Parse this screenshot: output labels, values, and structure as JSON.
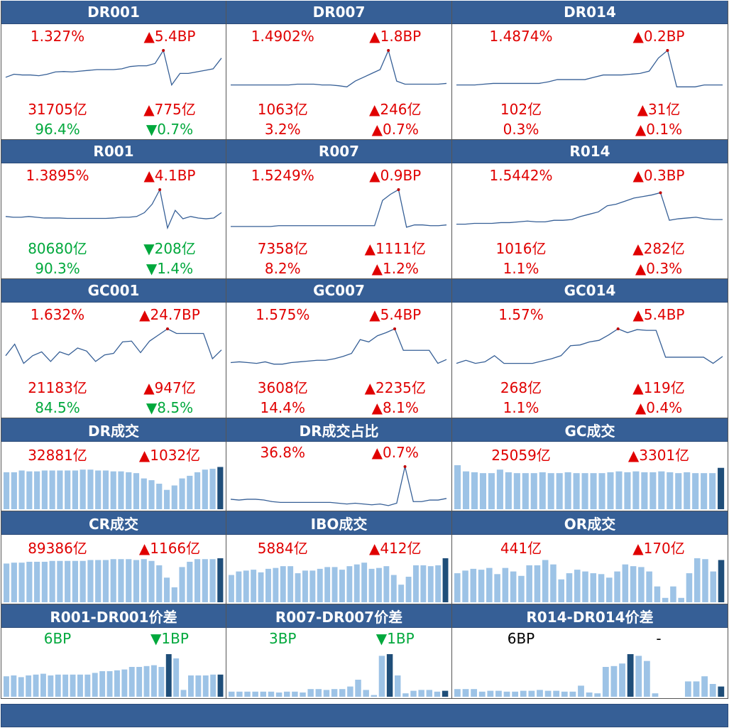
{
  "colors": {
    "header": "#365f96",
    "up": "#e00000",
    "down": "#00a83c",
    "line": "#365f96",
    "bar": "#9dc3e6",
    "bar_last": "#1f4e79"
  },
  "rows": [
    {
      "type": "rate",
      "cells": [
        {
          "title": "DR001",
          "rate": "1.327%",
          "rate_chg": "▲5.4BP",
          "rate_chg_color": "red",
          "vol": "31705亿",
          "vol_chg": "▲775亿",
          "vol_color": "red",
          "vol_chg_color": "red",
          "share": "96.4%",
          "share_chg": "▼0.7%",
          "share_color": "grn",
          "share_chg_color": "grn",
          "series": [
            0.3,
            0.38,
            0.36,
            0.36,
            0.34,
            0.38,
            0.44,
            0.45,
            0.44,
            0.46,
            0.48,
            0.5,
            0.5,
            0.5,
            0.52,
            0.58,
            0.6,
            0.6,
            0.66,
            1.0,
            0.1,
            0.4,
            0.4,
            0.44,
            0.48,
            0.52,
            0.8
          ]
        },
        {
          "title": "DR007",
          "rate": "1.4902%",
          "rate_chg": "▲1.8BP",
          "rate_chg_color": "red",
          "vol": "1063亿",
          "vol_chg": "▲246亿",
          "vol_color": "red",
          "vol_chg_color": "red",
          "share": "3.2%",
          "share_chg": "▲0.7%",
          "share_color": "red",
          "share_chg_color": "red",
          "series": [
            0.1,
            0.1,
            0.1,
            0.1,
            0.1,
            0.1,
            0.1,
            0.1,
            0.12,
            0.12,
            0.12,
            0.1,
            0.1,
            0.08,
            0.05,
            0.2,
            0.3,
            0.4,
            0.5,
            1.0,
            0.2,
            0.12,
            0.12,
            0.12,
            0.12,
            0.12,
            0.14
          ]
        },
        {
          "title": "DR014",
          "rate": "1.4874%",
          "rate_chg": "▲0.2BP",
          "rate_chg_color": "red",
          "vol": "102亿",
          "vol_chg": "▲31亿",
          "vol_color": "red",
          "vol_chg_color": "red",
          "share": "0.3%",
          "share_chg": "▲0.1%",
          "share_color": "red",
          "share_chg_color": "red",
          "series": [
            0.1,
            0.1,
            0.1,
            0.12,
            0.14,
            0.14,
            0.14,
            0.14,
            0.14,
            0.14,
            0.18,
            0.24,
            0.24,
            0.24,
            0.24,
            0.3,
            0.36,
            0.36,
            0.36,
            0.38,
            0.4,
            0.46,
            0.8,
            1.0,
            0.05,
            0.05,
            0.05,
            0.1,
            0.1,
            0.1
          ]
        }
      ]
    },
    {
      "type": "rate",
      "cells": [
        {
          "title": "R001",
          "rate": "1.3895%",
          "rate_chg": "▲4.1BP",
          "rate_chg_color": "red",
          "vol": "80680亿",
          "vol_chg": "▼208亿",
          "vol_color": "grn",
          "vol_chg_color": "grn",
          "share": "90.3%",
          "share_chg": "▼1.4%",
          "share_color": "grn",
          "share_chg_color": "grn",
          "series": [
            0.3,
            0.28,
            0.28,
            0.3,
            0.28,
            0.26,
            0.26,
            0.26,
            0.25,
            0.25,
            0.25,
            0.25,
            0.25,
            0.25,
            0.26,
            0.28,
            0.28,
            0.3,
            0.4,
            0.62,
            1.0,
            0.0,
            0.46,
            0.24,
            0.3,
            0.26,
            0.24,
            0.26,
            0.4
          ]
        },
        {
          "title": "R007",
          "rate": "1.5249%",
          "rate_chg": "▲0.9BP",
          "rate_chg_color": "red",
          "vol": "7358亿",
          "vol_chg": "▲1111亿",
          "vol_color": "red",
          "vol_chg_color": "red",
          "share": "8.2%",
          "share_chg": "▲1.2%",
          "share_color": "red",
          "share_chg_color": "red",
          "series": [
            0.04,
            0.04,
            0.04,
            0.04,
            0.04,
            0.04,
            0.06,
            0.06,
            0.06,
            0.06,
            0.06,
            0.06,
            0.06,
            0.06,
            0.06,
            0.06,
            0.06,
            0.06,
            0.06,
            0.72,
            0.88,
            1.0,
            0.02,
            0.08,
            0.08,
            0.06,
            0.06,
            0.08
          ]
        },
        {
          "title": "R014",
          "rate": "1.5442%",
          "rate_chg": "▲0.3BP",
          "rate_chg_color": "red",
          "vol": "1016亿",
          "vol_chg": "▲282亿",
          "vol_color": "red",
          "vol_chg_color": "red",
          "share": "1.1%",
          "share_chg": "▲0.3%",
          "share_color": "red",
          "share_chg_color": "red",
          "series": [
            0.1,
            0.1,
            0.12,
            0.12,
            0.12,
            0.14,
            0.14,
            0.16,
            0.18,
            0.16,
            0.16,
            0.2,
            0.2,
            0.22,
            0.3,
            0.36,
            0.42,
            0.58,
            0.62,
            0.7,
            0.78,
            0.82,
            0.86,
            0.92,
            0.2,
            0.24,
            0.26,
            0.28,
            0.24,
            0.22,
            0.22
          ]
        }
      ]
    },
    {
      "type": "rate",
      "cells": [
        {
          "title": "GC001",
          "rate": "1.632%",
          "rate_chg": "▲24.7BP",
          "rate_chg_color": "red",
          "vol": "21183亿",
          "vol_chg": "▲947亿",
          "vol_color": "red",
          "vol_chg_color": "red",
          "share": "84.5%",
          "share_chg": "▼8.5%",
          "share_color": "grn",
          "share_chg_color": "grn",
          "series": [
            0.3,
            0.6,
            0.1,
            0.3,
            0.4,
            0.15,
            0.4,
            0.32,
            0.5,
            0.42,
            0.15,
            0.32,
            0.36,
            0.66,
            0.68,
            0.38,
            0.68,
            0.84,
            1.0,
            0.88,
            0.88,
            0.88,
            0.88,
            0.22,
            0.45
          ]
        },
        {
          "title": "GC007",
          "rate": "1.575%",
          "rate_chg": "▲5.4BP",
          "rate_chg_color": "red",
          "vol": "3608亿",
          "vol_chg": "▲2235亿",
          "vol_color": "red",
          "vol_chg_color": "red",
          "share": "14.4%",
          "share_chg": "▲8.1%",
          "share_color": "red",
          "share_chg_color": "red",
          "series": [
            0.12,
            0.14,
            0.12,
            0.1,
            0.14,
            0.08,
            0.08,
            0.12,
            0.14,
            0.16,
            0.18,
            0.18,
            0.22,
            0.28,
            0.36,
            0.72,
            0.66,
            0.82,
            0.9,
            1.0,
            0.44,
            0.44,
            0.44,
            0.44,
            0.1,
            0.2
          ]
        },
        {
          "title": "GC014",
          "rate": "1.57%",
          "rate_chg": "▲5.4BP",
          "rate_chg_color": "red",
          "vol": "268亿",
          "vol_chg": "▲119亿",
          "vol_color": "red",
          "vol_chg_color": "red",
          "share": "1.1%",
          "share_chg": "▲0.4%",
          "share_color": "red",
          "share_chg_color": "red",
          "series": [
            0.1,
            0.18,
            0.1,
            0.14,
            0.3,
            0.1,
            0.1,
            0.1,
            0.1,
            0.16,
            0.22,
            0.3,
            0.56,
            0.58,
            0.66,
            0.7,
            0.84,
            1.0,
            0.9,
            0.98,
            0.96,
            0.96,
            0.26,
            0.26,
            0.26,
            0.26,
            0.26,
            0.1,
            0.28
          ]
        }
      ]
    },
    {
      "type": "bar",
      "cells": [
        {
          "title": "DR成交",
          "v1": "32881亿",
          "v1_color": "red",
          "v2": "▲1032亿",
          "v2_color": "red",
          "chart": "bar",
          "series": [
            0.84,
            0.84,
            0.88,
            0.86,
            0.86,
            0.88,
            0.88,
            0.88,
            0.88,
            0.88,
            0.9,
            0.9,
            0.88,
            0.88,
            0.86,
            0.86,
            0.84,
            0.82,
            0.7,
            0.66,
            0.58,
            0.44,
            0.54,
            0.7,
            0.76,
            0.84,
            0.9,
            0.92,
            0.96
          ]
        },
        {
          "title": "DR成交占比",
          "v1": "36.8%",
          "v1_color": "red",
          "v2": "▲0.7%",
          "v2_color": "red",
          "chart": "line",
          "series": [
            0.18,
            0.16,
            0.18,
            0.18,
            0.16,
            0.12,
            0.1,
            0.1,
            0.1,
            0.1,
            0.1,
            0.1,
            0.1,
            0.08,
            0.06,
            0.08,
            0.06,
            0.04,
            0.06,
            0.02,
            0.08,
            1.0,
            0.12,
            0.12,
            0.16,
            0.16,
            0.2
          ]
        },
        {
          "title": "GC成交",
          "v1": "25059亿",
          "v1_color": "red",
          "v2": "▲3301亿",
          "v2_color": "red",
          "chart": "bar",
          "series": [
            1.0,
            0.86,
            0.84,
            0.82,
            0.82,
            0.9,
            0.84,
            0.82,
            0.82,
            0.82,
            0.84,
            0.82,
            0.82,
            0.84,
            0.82,
            0.82,
            0.82,
            0.82,
            0.84,
            0.86,
            0.84,
            0.86,
            0.84,
            0.84,
            0.86,
            0.84,
            0.82,
            0.84,
            0.82,
            0.82,
            0.82,
            0.94
          ]
        }
      ]
    },
    {
      "type": "bar",
      "cells": [
        {
          "title": "CR成交",
          "v1": "89386亿",
          "v1_color": "red",
          "v2": "▲1166亿",
          "v2_color": "red",
          "chart": "bar",
          "series": [
            0.88,
            0.9,
            0.9,
            0.92,
            0.92,
            0.92,
            0.94,
            0.94,
            0.94,
            0.94,
            0.94,
            0.96,
            0.96,
            0.96,
            0.98,
            0.98,
            0.98,
            0.96,
            0.98,
            0.94,
            0.84,
            0.56,
            0.34,
            0.8,
            0.92,
            0.98,
            0.98,
            0.98,
            1.0
          ]
        },
        {
          "title": "IBO成交",
          "v1": "5884亿",
          "v1_color": "red",
          "v2": "▲412亿",
          "v2_color": "red",
          "chart": "bar",
          "series": [
            0.62,
            0.7,
            0.72,
            0.74,
            0.68,
            0.76,
            0.78,
            0.82,
            0.82,
            0.66,
            0.72,
            0.72,
            0.76,
            0.8,
            0.8,
            0.74,
            0.82,
            0.86,
            0.9,
            0.76,
            0.78,
            0.82,
            0.62,
            0.4,
            0.58,
            0.84,
            0.84,
            0.82,
            0.84,
            1.0
          ]
        },
        {
          "title": "OR成交",
          "v1": "441亿",
          "v1_color": "red",
          "v2": "▲170亿",
          "v2_color": "red",
          "chart": "bar",
          "series": [
            0.66,
            0.72,
            0.76,
            0.74,
            0.78,
            0.64,
            0.78,
            0.7,
            0.6,
            0.84,
            0.84,
            0.96,
            0.86,
            0.52,
            0.66,
            0.74,
            0.7,
            0.66,
            0.64,
            0.56,
            0.7,
            0.86,
            0.82,
            0.8,
            0.7,
            0.36,
            0.1,
            0.36,
            0.1,
            0.66,
            1.0,
            0.98,
            0.7,
            0.96
          ]
        }
      ]
    },
    {
      "type": "spread",
      "cells": [
        {
          "title": "R001-DR001价差",
          "v1": "6BP",
          "v1_color": "grn",
          "v2": "▼1BP",
          "v2_color": "grn",
          "chart": "bar",
          "series": [
            0.48,
            0.5,
            0.46,
            0.5,
            0.52,
            0.54,
            0.5,
            0.52,
            0.52,
            0.52,
            0.52,
            0.52,
            0.56,
            0.6,
            0.6,
            0.62,
            0.64,
            0.7,
            0.7,
            0.72,
            0.74,
            0.7,
            1.0,
            0.9,
            0.16,
            0.5,
            0.5,
            0.5,
            0.52,
            0.52
          ]
        },
        {
          "title": "R007-DR007价差",
          "v1": "3BP",
          "v1_color": "grn",
          "v2": "▼1BP",
          "v2_color": "grn",
          "chart": "bar",
          "series": [
            0.12,
            0.12,
            0.12,
            0.12,
            0.12,
            0.12,
            0.1,
            0.12,
            0.12,
            0.1,
            0.18,
            0.18,
            0.16,
            0.18,
            0.18,
            0.24,
            0.4,
            0.16,
            0.04,
            0.96,
            1.0,
            0.5,
            0.08,
            0.14,
            0.16,
            0.16,
            0.12,
            0.14
          ]
        },
        {
          "title": "R014-DR014价差",
          "v1": "6BP",
          "v1_color": "blk",
          "v2": "-",
          "v2_color": "blk",
          "chart": "bar",
          "series": [
            0.18,
            0.18,
            0.18,
            0.12,
            0.14,
            0.14,
            0.12,
            0.12,
            0.14,
            0.14,
            0.16,
            0.14,
            0.14,
            0.12,
            0.12,
            0.26,
            0.1,
            0.08,
            0.7,
            0.72,
            0.78,
            1.0,
            0.96,
            0.84,
            0.08,
            0.0,
            0.0,
            0.0,
            0.36,
            0.36,
            0.48,
            0.3,
            0.24
          ]
        }
      ]
    }
  ]
}
